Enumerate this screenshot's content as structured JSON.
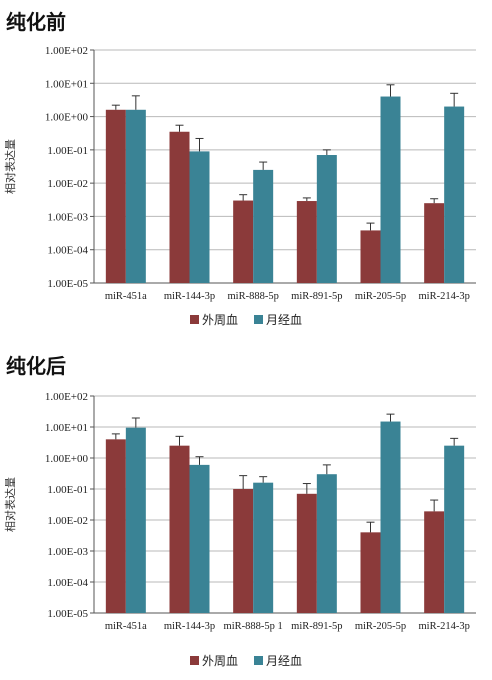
{
  "colors": {
    "s1": "#8b3a3a",
    "s2": "#3a8395"
  },
  "legend": [
    "外周血",
    "月经血"
  ],
  "ytick_labels": [
    "1.00E-05",
    "1.00E-04",
    "1.00E-03",
    "1.00E-02",
    "1.00E-01",
    "1.00E+00",
    "1.00E+01",
    "1.00E+02"
  ],
  "chart_data": [
    {
      "type": "bar",
      "title": "纯化前",
      "ylabel": "相对表达量",
      "yscale": "log",
      "ylim": [
        1e-05,
        100
      ],
      "categories": [
        "miR-451a",
        "miR-144-3p",
        "miR-888-5p",
        "miR-891-5p",
        "miR-205-5p",
        "miR-214-3p"
      ],
      "series": [
        {
          "name": "外周血",
          "values": [
            1.6,
            0.35,
            0.003,
            0.0029,
            0.00038,
            0.0025
          ],
          "errors": [
            0.6,
            0.2,
            0.0015,
            0.0007,
            0.00025,
            0.0009
          ]
        },
        {
          "name": "月经血",
          "values": [
            1.6,
            0.09,
            0.025,
            0.07,
            4.0,
            2.0
          ],
          "errors": [
            2.6,
            0.13,
            0.018,
            0.03,
            5.0,
            3.0
          ]
        }
      ]
    },
    {
      "type": "bar",
      "title": "纯化后",
      "ylabel": "相对表达量",
      "yscale": "log",
      "ylim": [
        1e-05,
        100
      ],
      "categories": [
        "miR-451a",
        "miR-144-3p",
        "miR-888-5p 1",
        "miR-891-5p",
        "miR-205-5p",
        "miR-214-3p"
      ],
      "series": [
        {
          "name": "外周血",
          "values": [
            4.0,
            2.5,
            0.1,
            0.07,
            0.004,
            0.019
          ],
          "errors": [
            2.0,
            2.5,
            0.17,
            0.08,
            0.0045,
            0.025
          ]
        },
        {
          "name": "月经血",
          "values": [
            9.5,
            0.6,
            0.16,
            0.3,
            15.0,
            2.5
          ],
          "errors": [
            10.0,
            0.5,
            0.09,
            0.3,
            11.0,
            1.8
          ]
        }
      ]
    }
  ]
}
